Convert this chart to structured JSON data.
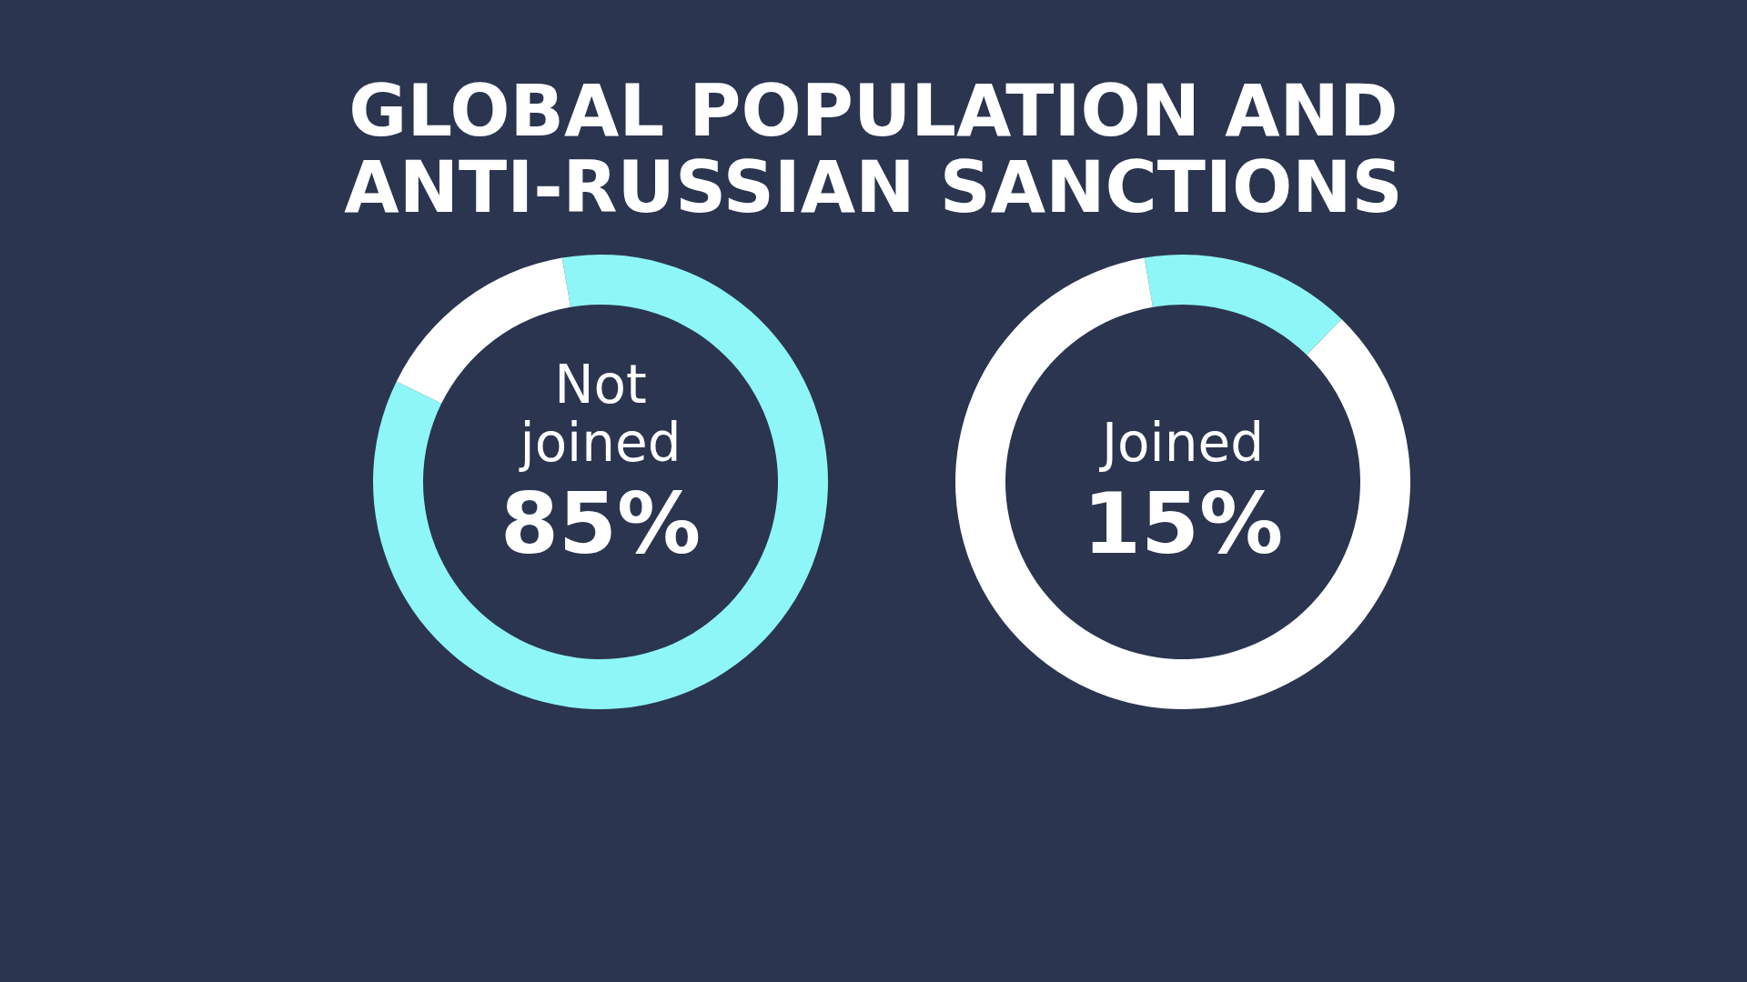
{
  "chart_data": [
    {
      "type": "donut",
      "title": "GLOBAL POPULATION AND ANTI-RUSSIAN SANCTIONS",
      "categories": [
        "Not joined",
        null
      ],
      "values": [
        85,
        15
      ],
      "colors": [
        "#8ef6f6",
        "#ffffff"
      ],
      "value_labels": [
        "85%",
        null
      ]
    },
    {
      "type": "donut",
      "categories": [
        "Joined",
        null
      ],
      "values": [
        15,
        85
      ],
      "colors": [
        "#8ef6f6",
        "#ffffff"
      ],
      "value_labels": [
        "15%",
        null
      ]
    }
  ]
}
